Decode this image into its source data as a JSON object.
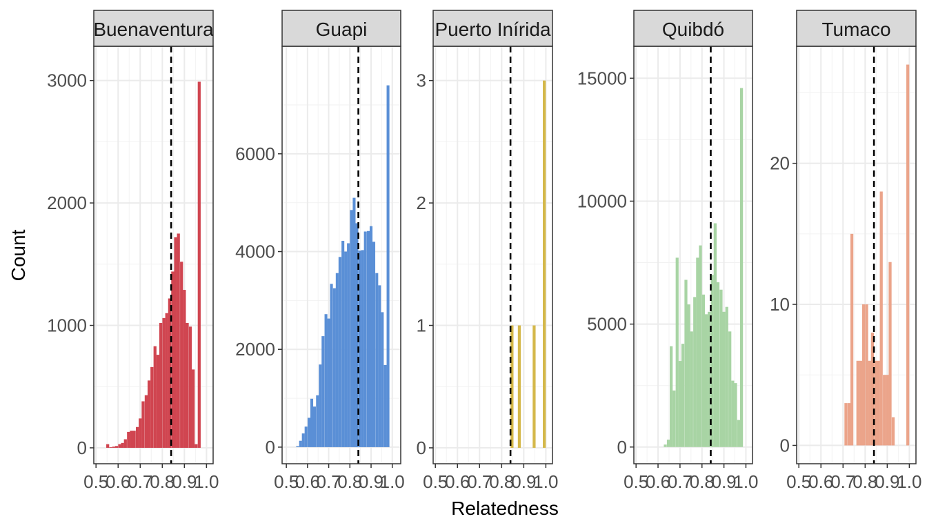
{
  "chart_data": {
    "type": "bar",
    "subtype": "faceted-histogram",
    "xlabel": "Relatedness",
    "ylabel": "Count",
    "bin_width": 0.0133,
    "grid": true,
    "legend": "none",
    "reference_line": {
      "x": 0.84,
      "style": "dashed",
      "color": "#000000"
    },
    "panels": [
      {
        "name": "Buenaventura",
        "color": "#d04550",
        "xlim": [
          0.49,
          1.03
        ],
        "ylim": [
          -130,
          3280
        ],
        "x_ticks": [
          0.5,
          0.6,
          0.7,
          0.8,
          0.9,
          1.0
        ],
        "x_tick_labels": [
          "0.5",
          "0.6",
          "0.7",
          "0.8",
          "0.9",
          "1.0"
        ],
        "y_ticks": [
          0,
          1000,
          2000,
          3000
        ],
        "y_tick_labels": [
          "0",
          "1000",
          "2000",
          "3000"
        ],
        "bins": [
          0.553,
          0.567,
          0.58,
          0.593,
          0.607,
          0.62,
          0.633,
          0.647,
          0.66,
          0.673,
          0.687,
          0.7,
          0.713,
          0.727,
          0.74,
          0.753,
          0.767,
          0.78,
          0.793,
          0.807,
          0.82,
          0.833,
          0.847,
          0.86,
          0.873,
          0.887,
          0.9,
          0.913,
          0.927,
          0.94,
          0.953,
          0.967,
          0.98,
          0.993
        ],
        "counts": [
          30,
          5,
          10,
          15,
          30,
          40,
          70,
          130,
          140,
          140,
          170,
          240,
          380,
          430,
          550,
          660,
          830,
          760,
          1020,
          1060,
          1100,
          1220,
          1440,
          1720,
          1750,
          1520,
          1290,
          1020,
          990,
          640,
          30,
          2990,
          0,
          0
        ]
      },
      {
        "name": "Guapi",
        "color": "#5a8fd6",
        "xlim": [
          0.48,
          1.04
        ],
        "ylim": [
          -340,
          8200
        ],
        "x_ticks": [
          0.5,
          0.6,
          0.7,
          0.8,
          0.9,
          1.0
        ],
        "x_tick_labels": [
          "0.5",
          "0.6",
          "0.7",
          "0.8",
          "0.9",
          "1.0"
        ],
        "y_ticks": [
          0,
          2000,
          4000,
          6000
        ],
        "y_tick_labels": [
          "0",
          "2000",
          "4000",
          "6000"
        ],
        "bins": [
          0.553,
          0.567,
          0.58,
          0.593,
          0.607,
          0.62,
          0.633,
          0.647,
          0.66,
          0.673,
          0.687,
          0.7,
          0.713,
          0.727,
          0.74,
          0.753,
          0.767,
          0.78,
          0.793,
          0.807,
          0.82,
          0.833,
          0.847,
          0.86,
          0.873,
          0.887,
          0.9,
          0.913,
          0.927,
          0.94,
          0.953,
          0.967,
          0.98,
          0.993
        ],
        "counts": [
          20,
          130,
          280,
          420,
          600,
          990,
          830,
          1060,
          1690,
          2270,
          2720,
          2630,
          3340,
          3250,
          3560,
          3890,
          4220,
          4000,
          4170,
          4850,
          5100,
          4580,
          4020,
          4030,
          4410,
          4420,
          4520,
          4200,
          3560,
          3310,
          2760,
          1680,
          7400,
          0
        ]
      },
      {
        "name": "Puerto Inírida",
        "color": "#d4b84a",
        "xlim": [
          0.49,
          1.03
        ],
        "ylim": [
          -0.13,
          3.28
        ],
        "x_ticks": [
          0.5,
          0.6,
          0.7,
          0.8,
          0.9,
          1.0
        ],
        "x_tick_labels": [
          "0.5",
          "0.6",
          "0.7",
          "0.8",
          "0.9",
          "1.0"
        ],
        "y_ticks": [
          0,
          1,
          2,
          3
        ],
        "y_tick_labels": [
          "0",
          "1",
          "2",
          "3"
        ],
        "bins": [
          0.847,
          0.88,
          0.947,
          0.993
        ],
        "counts": [
          1,
          1,
          1,
          3
        ]
      },
      {
        "name": "Quibdó",
        "color": "#a8d4a4",
        "xlim": [
          0.49,
          1.03
        ],
        "ylim": [
          -680,
          16300
        ],
        "x_ticks": [
          0.5,
          0.6,
          0.7,
          0.8,
          0.9,
          1.0
        ],
        "x_tick_labels": [
          "0.5",
          "0.6",
          "0.7",
          "0.8",
          "0.9",
          "1.0"
        ],
        "y_ticks": [
          0,
          5000,
          10000,
          15000
        ],
        "y_tick_labels": [
          "0",
          "5000",
          "10000",
          "15000"
        ],
        "bins": [
          0.633,
          0.647,
          0.66,
          0.673,
          0.687,
          0.7,
          0.713,
          0.727,
          0.74,
          0.753,
          0.767,
          0.78,
          0.793,
          0.807,
          0.82,
          0.833,
          0.847,
          0.86,
          0.873,
          0.887,
          0.9,
          0.913,
          0.927,
          0.94,
          0.953,
          0.967,
          0.98,
          0.993
        ],
        "counts": [
          100,
          300,
          4100,
          2300,
          7700,
          3500,
          4200,
          6800,
          5800,
          4700,
          6100,
          7700,
          8200,
          6200,
          5400,
          5500,
          7000,
          9100,
          6700,
          6400,
          5500,
          5700,
          4700,
          2700,
          2600,
          1100,
          14600,
          0
        ]
      },
      {
        "name": "Tumaco",
        "color": "#eba48a",
        "xlim": [
          0.49,
          1.03
        ],
        "ylim": [
          -1.3,
          28.3
        ],
        "x_ticks": [
          0.5,
          0.6,
          0.7,
          0.8,
          0.9,
          1.0
        ],
        "x_tick_labels": [
          "0.5",
          "0.6",
          "0.7",
          "0.8",
          "0.9",
          "1.0"
        ],
        "y_ticks": [
          0,
          10,
          20
        ],
        "y_tick_labels": [
          "0",
          "10",
          "20"
        ],
        "bins": [
          0.713,
          0.727,
          0.74,
          0.753,
          0.767,
          0.78,
          0.793,
          0.807,
          0.82,
          0.833,
          0.847,
          0.86,
          0.873,
          0.887,
          0.9,
          0.913,
          0.927,
          0.94,
          0.953,
          0.967,
          0.98,
          0.993
        ],
        "counts": [
          3,
          3,
          15,
          0,
          6,
          6,
          10,
          10,
          6,
          8,
          6,
          6,
          18,
          5,
          5,
          13,
          2,
          0,
          0,
          0,
          0,
          27
        ]
      }
    ]
  }
}
